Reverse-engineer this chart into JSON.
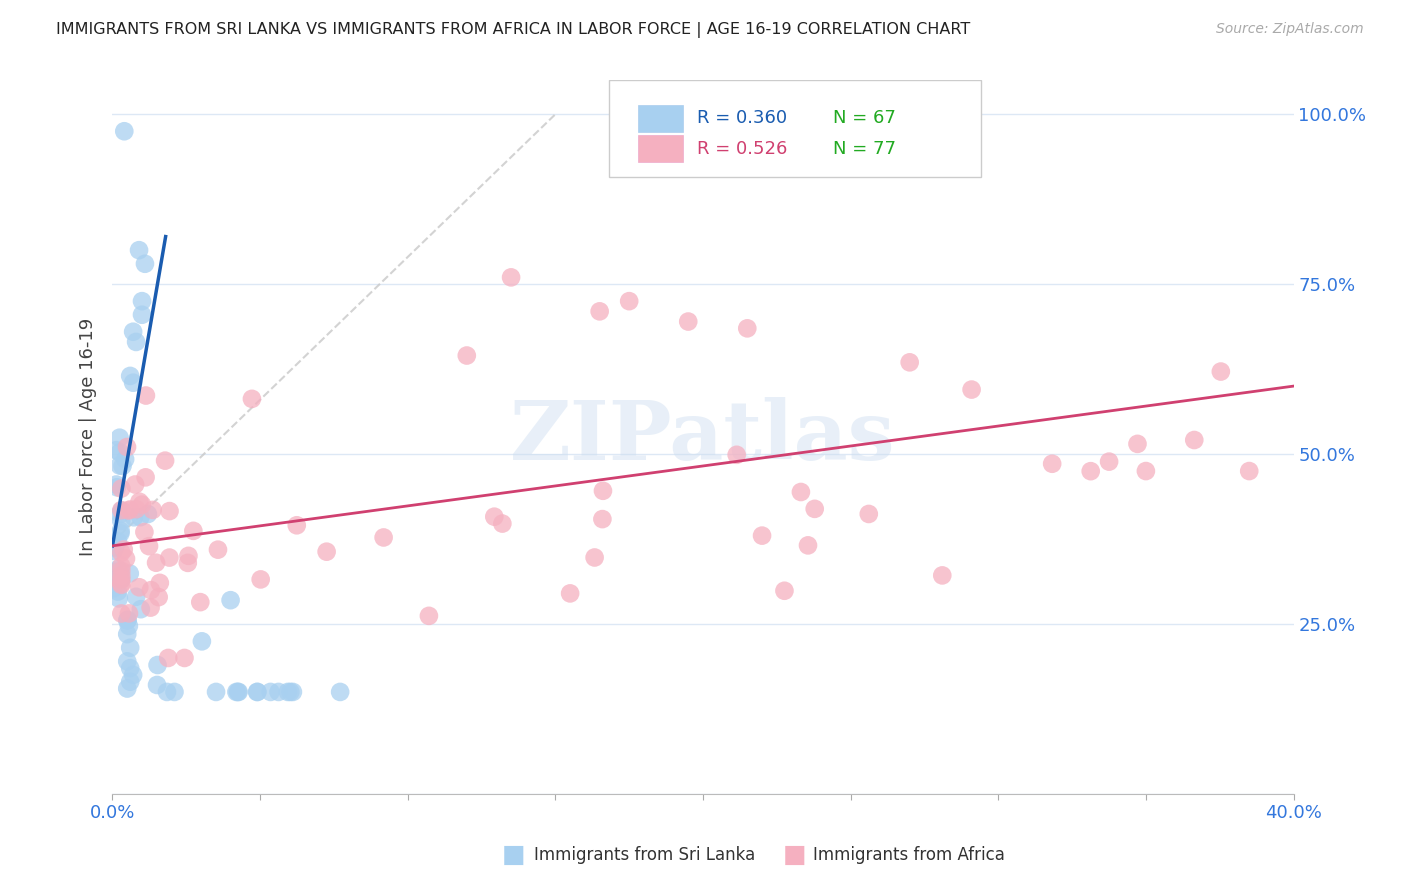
{
  "title": "IMMIGRANTS FROM SRI LANKA VS IMMIGRANTS FROM AFRICA IN LABOR FORCE | AGE 16-19 CORRELATION CHART",
  "source": "Source: ZipAtlas.com",
  "ylabel": "In Labor Force | Age 16-19",
  "xlim": [
    0.0,
    0.4
  ],
  "ylim": [
    0.0,
    1.05
  ],
  "sri_lanka_R": 0.36,
  "sri_lanka_N": 67,
  "africa_R": 0.526,
  "africa_N": 77,
  "sri_lanka_color": "#a8d0f0",
  "africa_color": "#f5b0c0",
  "sri_lanka_line_color": "#1a5cb0",
  "africa_line_color": "#d04070",
  "diagonal_color": "#c8c8c8",
  "watermark": "ZIPatlas",
  "title_color": "#222222",
  "axis_label_color": "#444444",
  "right_tick_color": "#3377dd",
  "bottom_tick_color": "#3377dd",
  "legend_sri_color": "#1a5cb0",
  "legend_africa_color": "#d04070",
  "legend_N_color": "#22aa22"
}
